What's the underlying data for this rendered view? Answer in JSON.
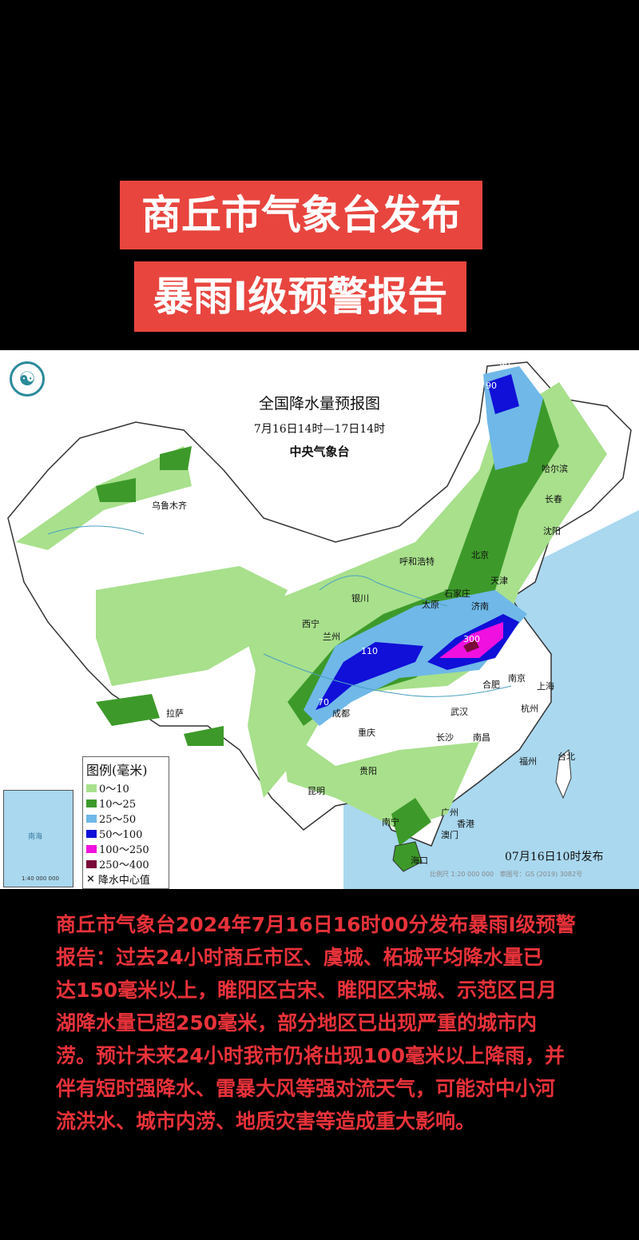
{
  "header": {
    "line1": "商丘市气象台发布",
    "line2": "暴雨I级预警报告"
  },
  "map": {
    "title": "全国降水量预报图",
    "period": "7月16日14时—17日14时",
    "agency": "中央气象台",
    "issued": "07月16日10时发布",
    "scale": "比例尺 1:20 000 000",
    "review_no": "审图号：GS (2019) 3082号",
    "inset_scale": "1:40 000 000",
    "inset_label": "南海",
    "legend": {
      "title": "图例(毫米)",
      "items": [
        {
          "label": "0～10",
          "color": "#a8e08c"
        },
        {
          "label": "10～25",
          "color": "#3d9a2a"
        },
        {
          "label": "25～50",
          "color": "#6fb8e8"
        },
        {
          "label": "50～100",
          "color": "#1010d8"
        },
        {
          "label": "100～250",
          "color": "#f010e0"
        },
        {
          "label": "250～400",
          "color": "#7a0a3a"
        }
      ],
      "center_marker": "降水中心值",
      "center_symbol": "×"
    },
    "center_values": [
      "90",
      "90",
      "110",
      "70",
      "300"
    ],
    "cities": [
      "乌鲁木齐",
      "哈尔滨",
      "长春",
      "沈阳",
      "北京",
      "天津",
      "呼和浩特",
      "石家庄",
      "太原",
      "济南",
      "银川",
      "西宁",
      "兰州",
      "拉萨",
      "成都",
      "重庆",
      "武汉",
      "合肥",
      "南京",
      "上海",
      "杭州",
      "长沙",
      "南昌",
      "福州",
      "台北",
      "贵阳",
      "昆明",
      "南宁",
      "广州",
      "香港",
      "澳门",
      "海口"
    ]
  },
  "report": {
    "lines": [
      "商丘市气象台2024年7月16日16时00分发布暴雨I级预警",
      "报告：过去24小时商丘市区、虞城、柘城平均降水量已",
      "达150毫米以上，睢阳区古宋、睢阳区宋城、示范区日月",
      "湖降水量已超250毫米，部分地区已出现严重的城市内",
      "涝。预计未来24小时我市仍将出现100毫米以上降雨，并",
      "伴有短时强降水、雷暴大风等强对流天气，可能对中小河",
      "流洪水、城市内涝、地质灾害等造成重大影响。"
    ]
  }
}
